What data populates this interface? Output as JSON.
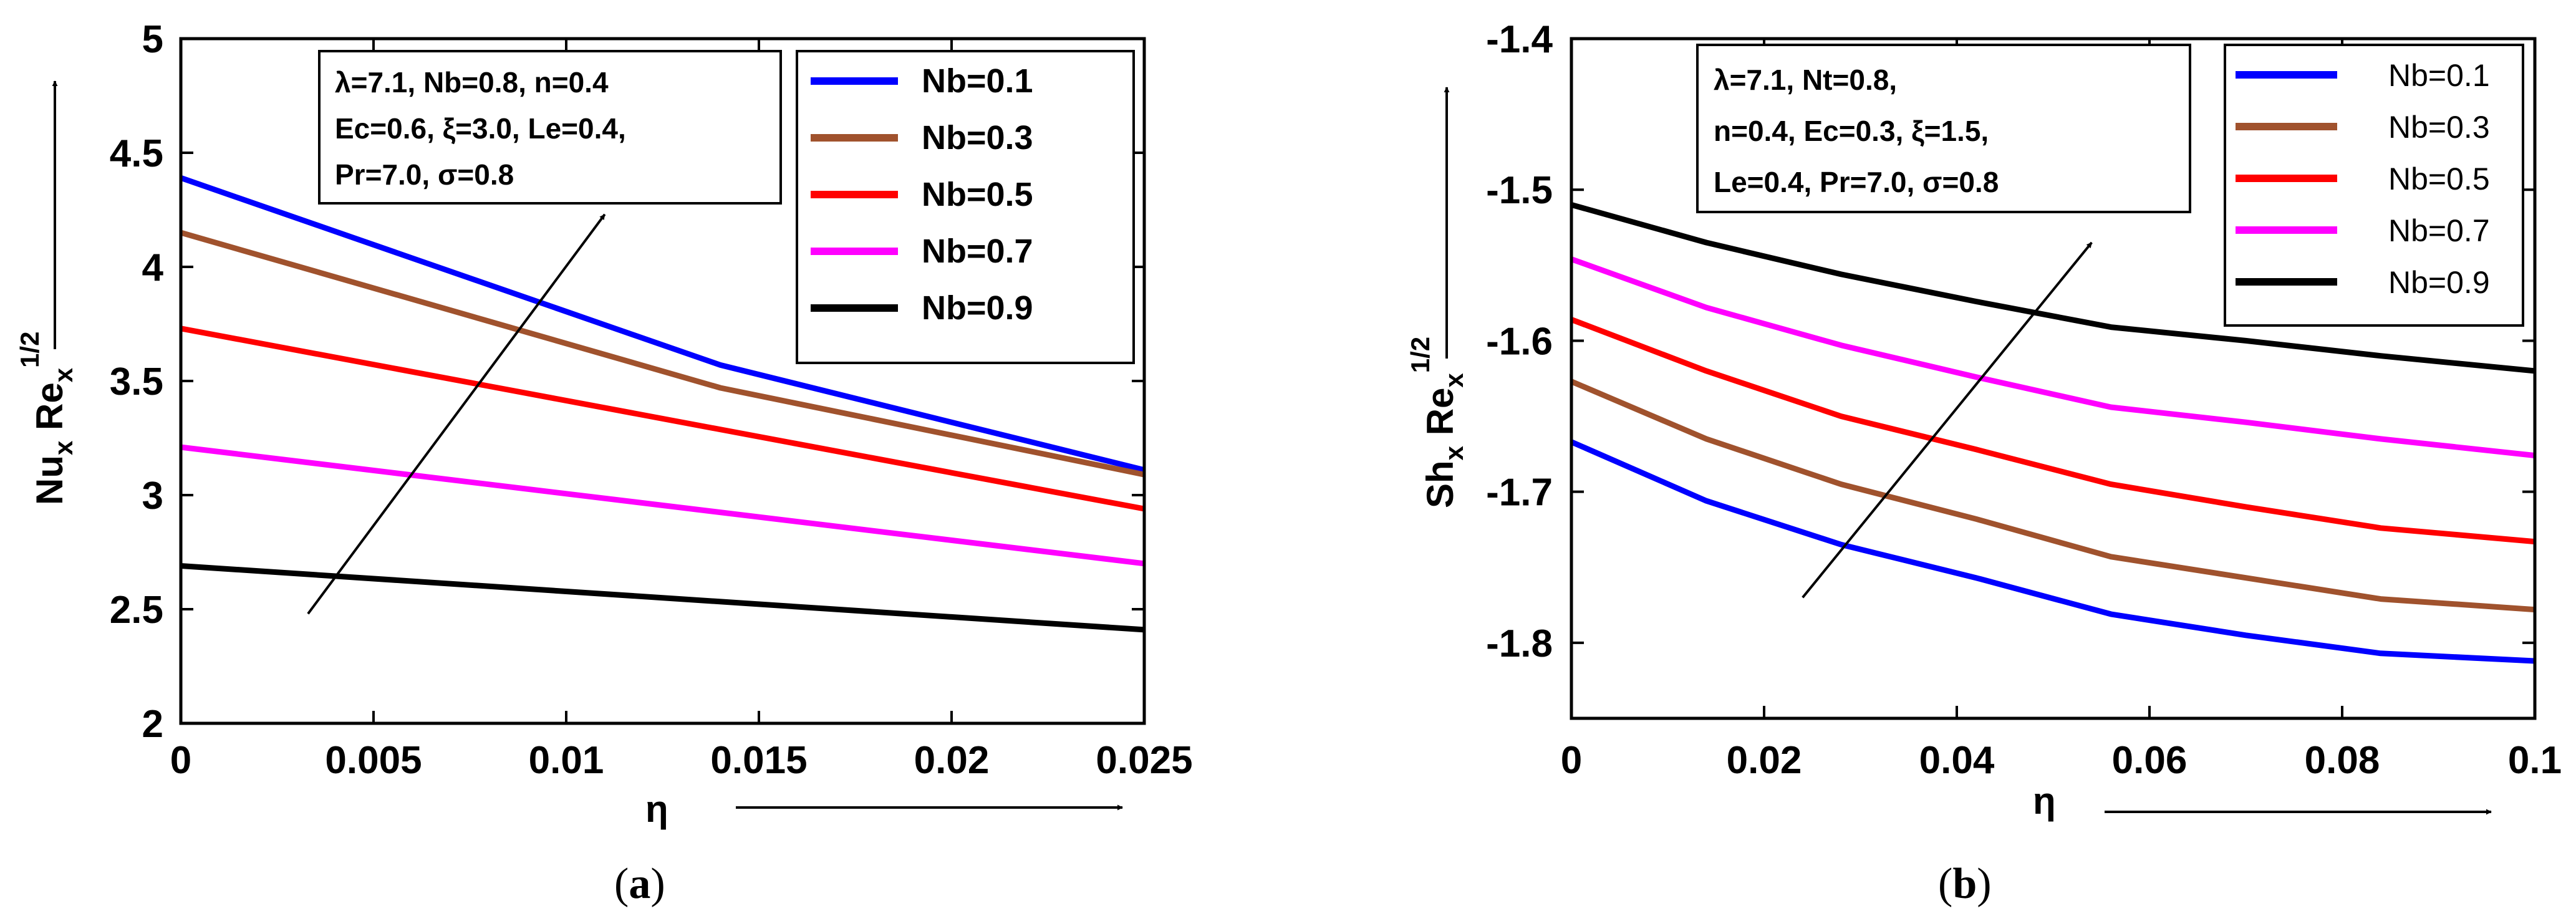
{
  "chart_data": [
    {
      "type": "line",
      "panel_label": "a",
      "xlabel": "η",
      "ylabel": {
        "base": "Nu",
        "sub1": "x",
        "mid": " Re",
        "sub2": "x",
        "sup": "1/2"
      },
      "xlim": [
        0,
        0.025
      ],
      "ylim": [
        2,
        5
      ],
      "xticks": [
        0,
        0.005,
        0.01,
        0.015,
        0.02,
        0.025
      ],
      "xtick_labels": [
        "0",
        "0.005",
        "0.01",
        "0.015",
        "0.02",
        "0.025"
      ],
      "yticks": [
        2,
        2.5,
        3,
        3.5,
        4,
        4.5,
        5
      ],
      "ytick_labels": [
        "2",
        "2.5",
        "3",
        "3.5",
        "4",
        "4.5",
        "5"
      ],
      "annotation_lines": [
        "λ=7.1, Nb=0.8, n=0.4",
        "Ec=0.6, ξ=3.0, Le=0.4,",
        "Pr=7.0, σ=0.8"
      ],
      "trend_arrow": {
        "from": [
          0.0033,
          2.48
        ],
        "to": [
          0.011,
          4.23
        ]
      },
      "series": [
        {
          "name": "Nb=0.1",
          "color": "#0000ff",
          "x": [
            0,
            0.014,
            0.025
          ],
          "y": [
            4.39,
            3.57,
            3.11
          ]
        },
        {
          "name": "Nb=0.3",
          "color": "#a0522d",
          "x": [
            0,
            0.014,
            0.025
          ],
          "y": [
            4.15,
            3.47,
            3.09
          ]
        },
        {
          "name": "Nb=0.5",
          "color": "#ff0000",
          "x": [
            0,
            0.025
          ],
          "y": [
            3.73,
            2.94
          ]
        },
        {
          "name": "Nb=0.7",
          "color": "#ff00ff",
          "x": [
            0,
            0.025
          ],
          "y": [
            3.21,
            2.7
          ]
        },
        {
          "name": "Nb=0.9",
          "color": "#000000",
          "x": [
            0,
            0.025
          ],
          "y": [
            2.69,
            2.41
          ]
        }
      ]
    },
    {
      "type": "line",
      "panel_label": "b",
      "xlabel": "η",
      "ylabel": {
        "base": "Sh",
        "sub1": "x",
        "mid": " Re",
        "sub2": "x",
        "sup": "1/2"
      },
      "xlim": [
        0,
        0.1
      ],
      "ylim": [
        -1.85,
        -1.4
      ],
      "xticks": [
        0,
        0.02,
        0.04,
        0.06,
        0.08,
        0.1
      ],
      "xtick_labels": [
        "0",
        "0.02",
        "0.04",
        "0.06",
        "0.08",
        "0.1"
      ],
      "yticks": [
        -1.8,
        -1.7,
        -1.6,
        -1.5,
        -1.4
      ],
      "ytick_labels": [
        "-1.8",
        "-1.7",
        "-1.6",
        "-1.5",
        "-1.4"
      ],
      "annotation_lines": [
        "λ=7.1, Nt=0.8,",
        "n=0.4, Ec=0.3, ξ=1.5,",
        "Le=0.4, Pr=7.0, σ=0.8"
      ],
      "trend_arrow": {
        "from": [
          0.024,
          -1.77
        ],
        "to": [
          0.054,
          -1.535
        ]
      },
      "series": [
        {
          "name": "Nb=0.1",
          "color": "#0000ff",
          "x": [
            0,
            0.014,
            0.028,
            0.042,
            0.056,
            0.07,
            0.084,
            0.1
          ],
          "y": [
            -1.667,
            -1.706,
            -1.735,
            -1.757,
            -1.781,
            -1.795,
            -1.807,
            -1.812
          ]
        },
        {
          "name": "Nb=0.3",
          "color": "#a0522d",
          "x": [
            0,
            0.014,
            0.028,
            0.042,
            0.056,
            0.07,
            0.084,
            0.1
          ],
          "y": [
            -1.627,
            -1.665,
            -1.695,
            -1.718,
            -1.743,
            -1.757,
            -1.771,
            -1.778
          ]
        },
        {
          "name": "Nb=0.5",
          "color": "#ff0000",
          "x": [
            0,
            0.014,
            0.028,
            0.042,
            0.056,
            0.07,
            0.084,
            0.1
          ],
          "y": [
            -1.586,
            -1.62,
            -1.65,
            -1.672,
            -1.695,
            -1.71,
            -1.724,
            -1.733
          ]
        },
        {
          "name": "Nb=0.7",
          "color": "#ff00ff",
          "x": [
            0,
            0.014,
            0.028,
            0.042,
            0.056,
            0.07,
            0.084,
            0.1
          ],
          "y": [
            -1.546,
            -1.578,
            -1.603,
            -1.624,
            -1.644,
            -1.654,
            -1.665,
            -1.676
          ]
        },
        {
          "name": "Nb=0.9",
          "color": "#000000",
          "x": [
            0,
            0.014,
            0.028,
            0.042,
            0.056,
            0.07,
            0.084,
            0.1
          ],
          "y": [
            -1.51,
            -1.535,
            -1.556,
            -1.574,
            -1.591,
            -1.6,
            -1.61,
            -1.62
          ]
        }
      ]
    }
  ]
}
